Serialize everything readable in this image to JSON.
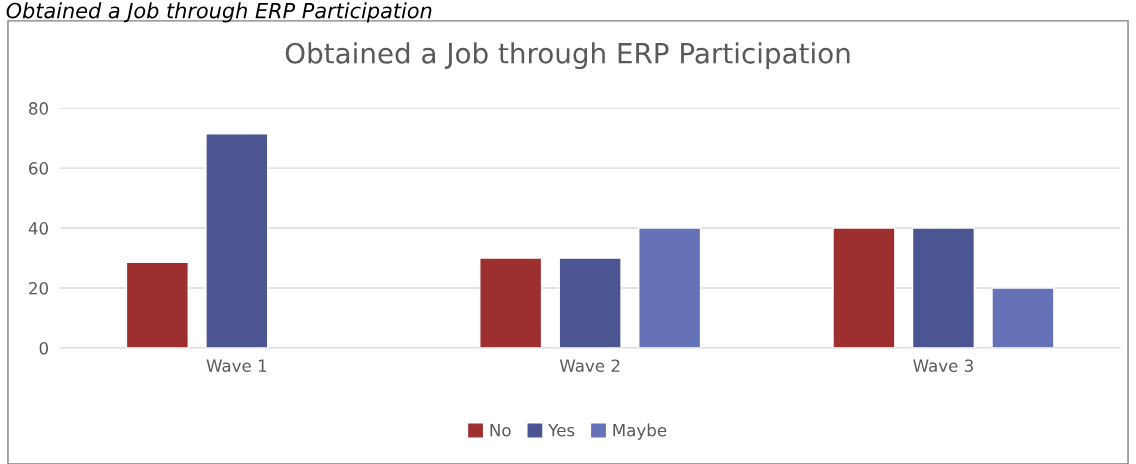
{
  "chart_data": {
    "type": "bar",
    "title": "Obtained a Job through ERP Participation",
    "annotations": [
      "Obtained a Job through ERP Participation"
    ],
    "categories": [
      "Wave 1",
      "Wave 2",
      "Wave 3"
    ],
    "series": [
      {
        "name": "No",
        "color": "#9e2f2f",
        "values": [
          28.6,
          30,
          40
        ]
      },
      {
        "name": "Yes",
        "color": "#4a5592",
        "values": [
          71.4,
          30,
          40
        ]
      },
      {
        "name": "Maybe",
        "color": "#6672b8",
        "values": [
          null,
          40,
          20
        ]
      }
    ],
    "ylim": [
      0,
      80
    ],
    "yticks": [
      0,
      20,
      40,
      60,
      80
    ],
    "grid": "y",
    "legend": "bottom"
  }
}
